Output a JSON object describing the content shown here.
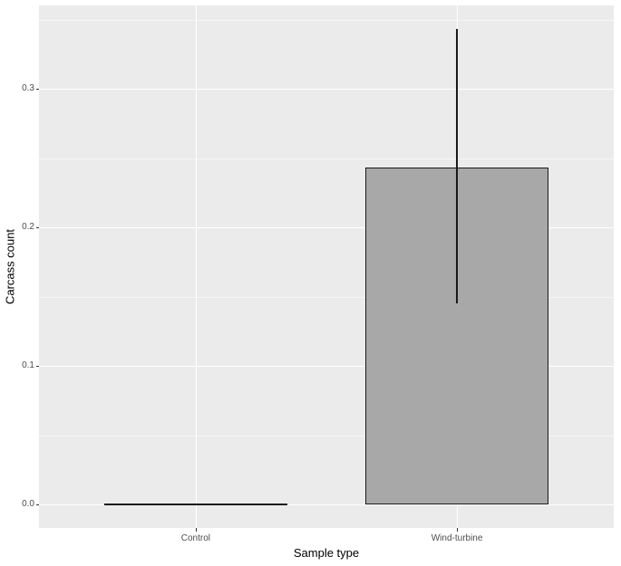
{
  "chart_data": {
    "type": "bar",
    "title": "",
    "categories": [
      "Control",
      "Wind-turbine"
    ],
    "values": [
      0.0,
      0.243
    ],
    "error_low": [
      null,
      0.145
    ],
    "error_high": [
      null,
      0.343
    ],
    "xlabel": "Sample type",
    "ylabel": "Carcass count",
    "y_major_ticks": [
      0.0,
      0.1,
      0.2,
      0.3
    ],
    "y_tick_labels": [
      "0.0",
      "0.1",
      "0.2",
      "0.3"
    ],
    "y_minor_ticks": [
      0.05,
      0.15,
      0.25,
      0.35
    ],
    "ylim": [
      -0.017,
      0.3601
    ],
    "xlim": [
      0.4,
      2.6
    ],
    "x_positions": [
      1,
      2
    ],
    "bar_width": 0.7,
    "grid": "horizontal major + minor, vertical major at category centers",
    "legend": "none",
    "colors": {
      "page_bg": "#ffffff",
      "panel_bg": "#ebebeb",
      "grid_major": "#ffffff",
      "grid_minor": "#f6f6f6",
      "bar_fill": "#a8a8a8",
      "bar_stroke": "#1a1a1a",
      "errorbar": "#1a1a1a",
      "tick_label": "#4d4d4d",
      "axis_title": "#000000",
      "tick_mark": "#333333"
    }
  }
}
